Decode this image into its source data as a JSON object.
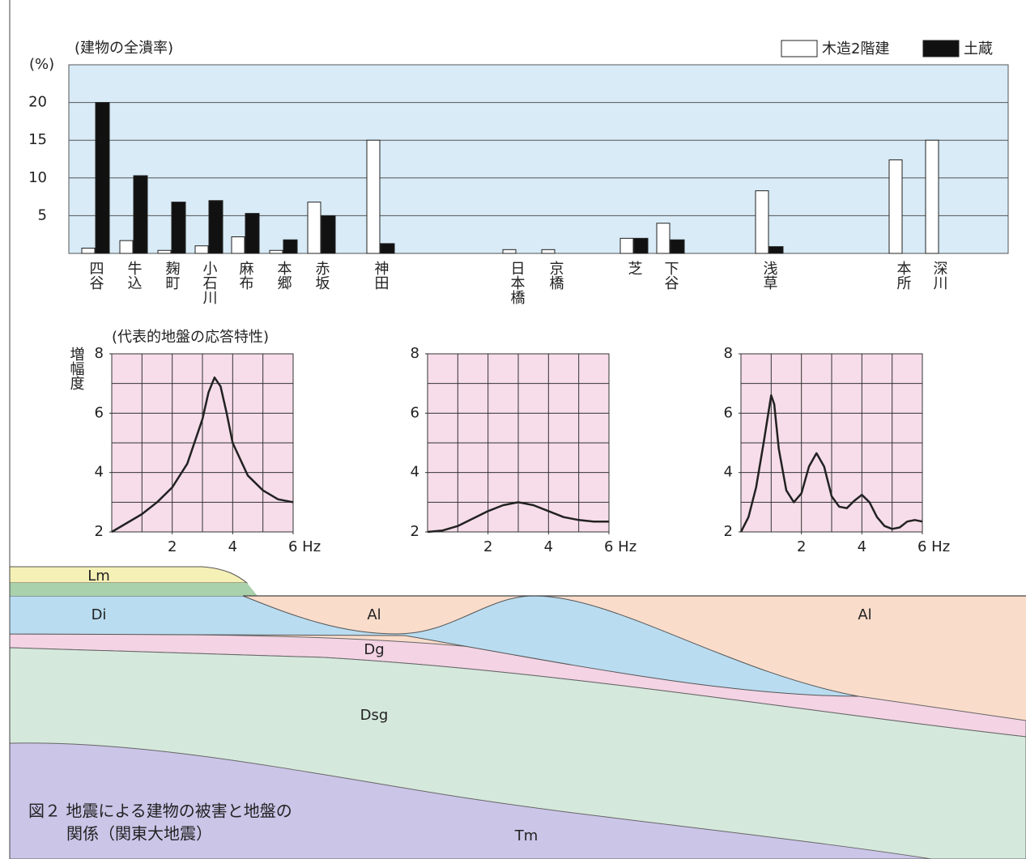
{
  "chart_data": [
    {
      "type": "bar",
      "title": "(建物の全潰率)",
      "y_label": "(%)",
      "categories": [
        "四谷",
        "牛込",
        "麹町",
        "小石川",
        "麻布",
        "本郷",
        "赤坂",
        "神田",
        "日本橋",
        "京橋",
        "芝",
        "下谷",
        "浅草",
        "本所",
        "深川"
      ],
      "series": [
        {
          "name": "木造2階建",
          "color": "#ffffff",
          "values": [
            0.7,
            1.7,
            0.4,
            1.0,
            2.2,
            0.4,
            6.8,
            15,
            0.5,
            0.5,
            2.0,
            4.0,
            8.3,
            12.4,
            15
          ]
        },
        {
          "name": "土蔵",
          "color": "#111111",
          "values": [
            20,
            10.3,
            6.8,
            7.0,
            5.3,
            1.8,
            5.0,
            1.3,
            null,
            null,
            2.0,
            1.8,
            0.9,
            null,
            null
          ]
        }
      ],
      "ylim": [
        0,
        25
      ],
      "yticks": [
        5,
        10,
        15,
        20
      ],
      "grid": true,
      "legend": "top-right"
    },
    {
      "type": "line",
      "title": "(代表的地盤の応答特性)",
      "y_label": "増幅度",
      "color": "#222222",
      "x": [
        0,
        0.5,
        1,
        1.5,
        2,
        2.5,
        3,
        3.2,
        3.4,
        3.6,
        3.8,
        4,
        4.5,
        5,
        5.5,
        6
      ],
      "values": [
        2,
        2.3,
        2.6,
        3.0,
        3.5,
        4.3,
        5.8,
        6.7,
        7.2,
        6.9,
        6.0,
        5.0,
        3.9,
        3.4,
        3.1,
        3.0
      ],
      "xlim": [
        0,
        6
      ],
      "xticks": [
        2,
        4,
        {
          "value": 6,
          "label": "6 Hz"
        }
      ],
      "ylim": [
        2,
        8
      ],
      "yticks": [
        2,
        4,
        6,
        8
      ],
      "grid": true
    },
    {
      "type": "line",
      "color": "#222222",
      "x": [
        0,
        0.5,
        1,
        1.5,
        2,
        2.5,
        3,
        3.5,
        4,
        4.5,
        5,
        5.5,
        6
      ],
      "values": [
        2,
        2.05,
        2.2,
        2.45,
        2.7,
        2.9,
        3.0,
        2.9,
        2.7,
        2.5,
        2.4,
        2.35,
        2.35
      ],
      "xlim": [
        0,
        6
      ],
      "xticks": [
        2,
        4,
        {
          "value": 6,
          "label": "6 Hz"
        }
      ],
      "ylim": [
        2,
        8
      ],
      "yticks": [
        2,
        4,
        6,
        8
      ],
      "grid": true
    },
    {
      "type": "line",
      "color": "#222222",
      "x": [
        0,
        0.25,
        0.5,
        0.75,
        1,
        1.1,
        1.25,
        1.5,
        1.75,
        2,
        2.25,
        2.5,
        2.75,
        3,
        3.25,
        3.5,
        3.75,
        4,
        4.25,
        4.5,
        4.75,
        5,
        5.25,
        5.5,
        5.75,
        6
      ],
      "values": [
        2,
        2.5,
        3.5,
        5.0,
        6.6,
        6.3,
        4.8,
        3.4,
        3.0,
        3.3,
        4.2,
        4.65,
        4.2,
        3.2,
        2.85,
        2.8,
        3.05,
        3.25,
        3.0,
        2.5,
        2.2,
        2.1,
        2.15,
        2.35,
        2.4,
        2.35
      ],
      "xlim": [
        0,
        6
      ],
      "xticks": [
        2,
        4,
        {
          "value": 6,
          "label": "6 Hz"
        }
      ],
      "ylim": [
        2,
        8
      ],
      "yticks": [
        2,
        4,
        6,
        8
      ],
      "grid": true
    }
  ],
  "cross_section": {
    "labels": [
      "Lm",
      "Di",
      "Al",
      "Al",
      "Dg",
      "Dsg",
      "Tm"
    ]
  },
  "caption": [
    "図２ 地震による建物の被害と地盤の",
    "関係（関東大地震）"
  ]
}
